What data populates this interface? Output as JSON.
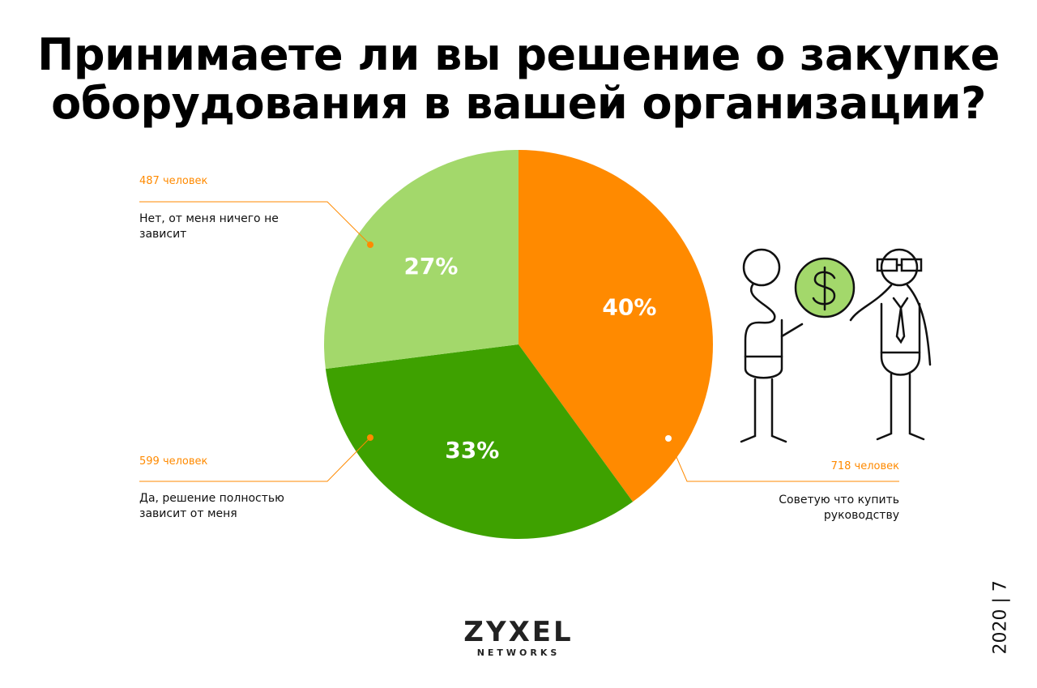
{
  "chart_data": {
    "type": "pie",
    "title": "Принимаете ли вы решение о закупке\nоборудования в вашей организации?",
    "categories": [
      "Советую что купить руководству",
      "Да, решение полностью зависит от меня",
      "Нет, от меня ничего не зависит"
    ],
    "values": [
      40,
      33,
      27
    ],
    "value_labels": [
      "40%",
      "33%",
      "27%"
    ],
    "count_labels": [
      "718 человек",
      "599 человек",
      "487 человек"
    ],
    "colors": [
      "#ff8a00",
      "#3ea100",
      "#a3d86b"
    ]
  },
  "footer": {
    "logo": "ZYXEL",
    "logo_sub": "NETWORKS",
    "page": "2020 | 7"
  }
}
